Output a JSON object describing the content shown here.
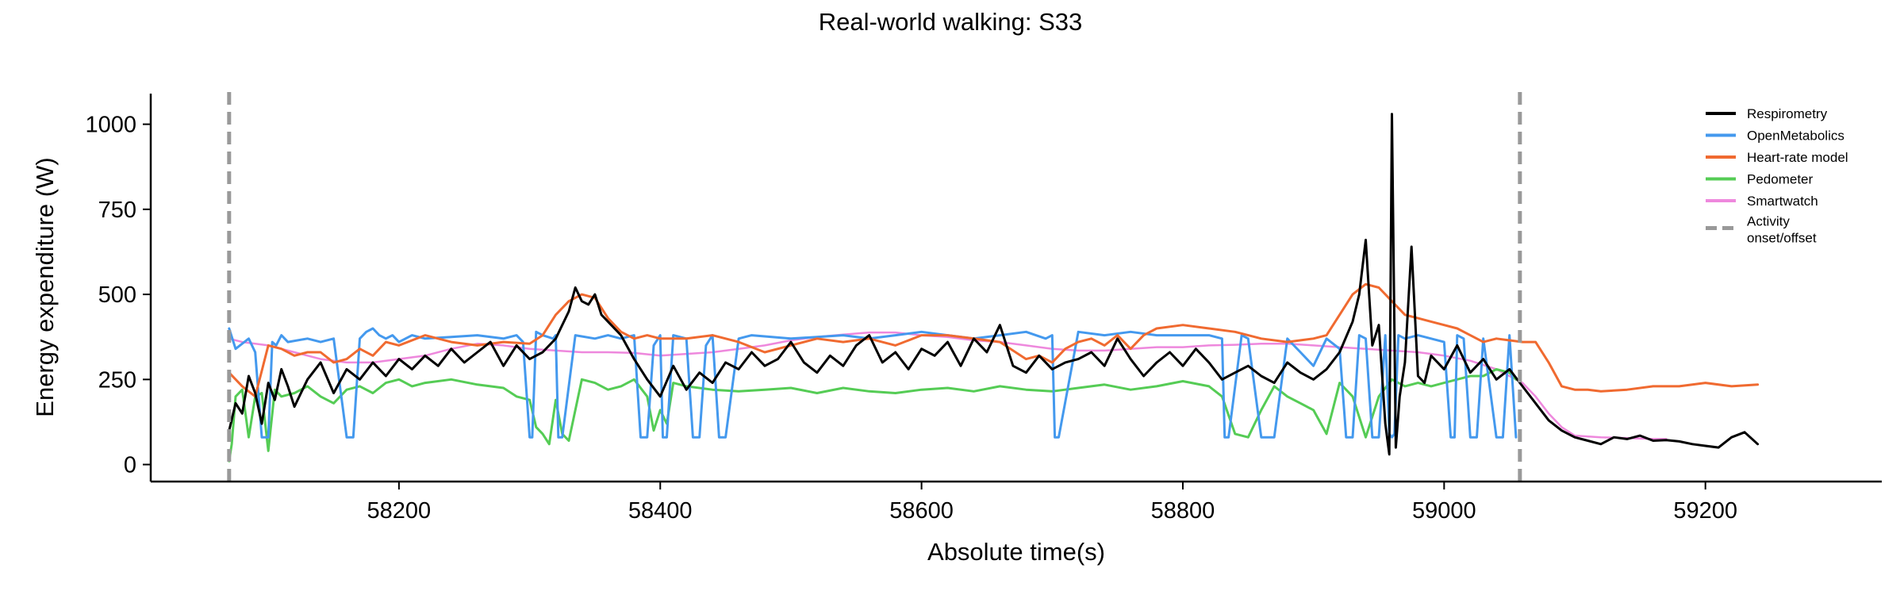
{
  "chart_data": {
    "type": "line",
    "title": "Real-world walking: S33",
    "xlabel": "Absolute time(s)",
    "ylabel": "Energy expenditure (W)",
    "xlim": [
      58010,
      59335
    ],
    "ylim": [
      -50,
      1090
    ],
    "xticks": [
      58200,
      58400,
      58600,
      58800,
      59000,
      59200
    ],
    "yticks": [
      0,
      250,
      500,
      750,
      1000
    ],
    "grid": false,
    "legend_position": "top-right",
    "activity_markers": {
      "name": "Activity onset/offset",
      "color": "#999999",
      "x": [
        58070,
        59058
      ]
    },
    "series": [
      {
        "name": "Respirometry",
        "color": "#000000",
        "x": [
          58070,
          58075,
          58080,
          58085,
          58090,
          58095,
          58100,
          58105,
          58110,
          58115,
          58120,
          58130,
          58140,
          58150,
          58160,
          58170,
          58180,
          58190,
          58200,
          58210,
          58220,
          58230,
          58240,
          58250,
          58260,
          58270,
          58280,
          58290,
          58300,
          58310,
          58320,
          58330,
          58335,
          58340,
          58345,
          58350,
          58355,
          58360,
          58370,
          58380,
          58390,
          58400,
          58410,
          58420,
          58430,
          58440,
          58450,
          58460,
          58470,
          58480,
          58490,
          58500,
          58510,
          58520,
          58530,
          58540,
          58550,
          58560,
          58570,
          58580,
          58590,
          58600,
          58610,
          58620,
          58630,
          58640,
          58650,
          58660,
          58670,
          58680,
          58690,
          58700,
          58710,
          58720,
          58730,
          58740,
          58750,
          58760,
          58770,
          58780,
          58790,
          58800,
          58810,
          58820,
          58830,
          58840,
          58850,
          58860,
          58870,
          58880,
          58890,
          58900,
          58910,
          58920,
          58930,
          58935,
          58940,
          58945,
          58950,
          58955,
          58958,
          58960,
          58963,
          58966,
          58970,
          58975,
          58980,
          58985,
          58990,
          59000,
          59010,
          59020,
          59030,
          59040,
          59050,
          59060,
          59070,
          59080,
          59090,
          59100,
          59110,
          59120,
          59130,
          59140,
          59150,
          59160,
          59170,
          59180,
          59190,
          59200,
          59210,
          59220,
          59230,
          59240
        ],
        "y": [
          100,
          180,
          150,
          260,
          210,
          120,
          240,
          190,
          280,
          230,
          170,
          250,
          300,
          210,
          280,
          250,
          300,
          260,
          310,
          280,
          320,
          290,
          340,
          300,
          330,
          360,
          290,
          350,
          310,
          330,
          370,
          450,
          520,
          480,
          470,
          500,
          440,
          420,
          380,
          310,
          250,
          200,
          290,
          220,
          270,
          240,
          300,
          280,
          330,
          290,
          310,
          360,
          300,
          270,
          320,
          290,
          350,
          380,
          300,
          330,
          280,
          340,
          320,
          360,
          290,
          370,
          330,
          410,
          290,
          270,
          320,
          280,
          300,
          310,
          330,
          290,
          370,
          310,
          260,
          300,
          330,
          290,
          340,
          300,
          250,
          270,
          290,
          260,
          240,
          300,
          270,
          250,
          280,
          330,
          420,
          500,
          660,
          350,
          410,
          120,
          30,
          1030,
          50,
          200,
          300,
          640,
          260,
          240,
          320,
          280,
          350,
          270,
          310,
          250,
          280,
          230,
          180,
          130,
          100,
          80,
          70,
          60,
          80,
          75,
          85,
          70,
          72,
          68,
          60,
          55,
          50,
          80,
          95,
          60
        ],
        "linewidth": 3
      },
      {
        "name": "OpenMetabolics",
        "color": "#4499ee",
        "x": [
          58070,
          58075,
          58085,
          58090,
          58095,
          58100,
          58103,
          58106,
          58110,
          58115,
          58130,
          58140,
          58150,
          58160,
          58165,
          58170,
          58175,
          58180,
          58185,
          58190,
          58195,
          58200,
          58210,
          58220,
          58240,
          58260,
          58280,
          58290,
          58295,
          58300,
          58302,
          58305,
          58310,
          58318,
          58320,
          58322,
          58325,
          58335,
          58350,
          58360,
          58370,
          58380,
          58385,
          58390,
          58395,
          58400,
          58402,
          58405,
          58410,
          58420,
          58425,
          58430,
          58435,
          58440,
          58445,
          58450,
          58460,
          58470,
          58500,
          58520,
          58540,
          58560,
          58580,
          58600,
          58620,
          58640,
          58660,
          58680,
          58695,
          58700,
          58702,
          58705,
          58720,
          58740,
          58760,
          58780,
          58800,
          58820,
          58830,
          58832,
          58835,
          58845,
          58850,
          58860,
          58870,
          58880,
          58890,
          58900,
          58910,
          58920,
          58925,
          58930,
          58935,
          58940,
          58945,
          58950,
          58955,
          58958,
          58960,
          58962,
          58965,
          58970,
          58980,
          58990,
          59000,
          59005,
          59008,
          59010,
          59015,
          59020,
          59025,
          59030,
          59040,
          59045,
          59050,
          59055
        ],
        "y": [
          400,
          340,
          370,
          330,
          80,
          80,
          360,
          350,
          380,
          360,
          370,
          360,
          370,
          80,
          80,
          370,
          390,
          400,
          380,
          370,
          380,
          360,
          380,
          370,
          375,
          380,
          370,
          380,
          360,
          80,
          80,
          390,
          380,
          370,
          380,
          80,
          80,
          380,
          370,
          380,
          370,
          380,
          80,
          80,
          350,
          380,
          80,
          80,
          380,
          370,
          80,
          80,
          350,
          380,
          80,
          80,
          370,
          380,
          370,
          375,
          380,
          370,
          380,
          390,
          380,
          370,
          380,
          390,
          370,
          380,
          80,
          80,
          390,
          380,
          390,
          380,
          380,
          380,
          370,
          80,
          80,
          380,
          370,
          80,
          80,
          370,
          330,
          290,
          370,
          340,
          80,
          80,
          380,
          370,
          80,
          80,
          380,
          90,
          80,
          90,
          380,
          370,
          380,
          370,
          360,
          80,
          80,
          380,
          370,
          80,
          80,
          370,
          80,
          80,
          380,
          80
        ],
        "linewidth": 3
      },
      {
        "name": "Heart-rate model",
        "color": "#f06a30",
        "x": [
          58070,
          58080,
          58090,
          58100,
          58110,
          58120,
          58130,
          58140,
          58150,
          58160,
          58170,
          58180,
          58190,
          58200,
          58220,
          58240,
          58260,
          58280,
          58300,
          58310,
          58320,
          58330,
          58340,
          58350,
          58355,
          58360,
          58370,
          58380,
          58390,
          58400,
          58420,
          58440,
          58460,
          58480,
          58500,
          58520,
          58540,
          58560,
          58580,
          58600,
          58620,
          58640,
          58660,
          58680,
          58690,
          58700,
          58710,
          58720,
          58730,
          58740,
          58750,
          58760,
          58770,
          58780,
          58800,
          58820,
          58840,
          58860,
          58880,
          58900,
          58910,
          58920,
          58930,
          58940,
          58950,
          58960,
          58970,
          58980,
          58990,
          59000,
          59010,
          59020,
          59030,
          59040,
          59050,
          59060,
          59070,
          59080,
          59090,
          59100,
          59110,
          59120,
          59140,
          59160,
          59180,
          59200,
          59220,
          59240
        ],
        "y": [
          270,
          230,
          200,
          350,
          340,
          320,
          330,
          330,
          300,
          310,
          340,
          320,
          360,
          350,
          380,
          360,
          350,
          360,
          355,
          380,
          440,
          480,
          500,
          490,
          460,
          430,
          390,
          370,
          380,
          370,
          370,
          380,
          360,
          330,
          350,
          370,
          360,
          370,
          350,
          380,
          380,
          370,
          360,
          310,
          320,
          300,
          340,
          360,
          370,
          350,
          380,
          340,
          380,
          400,
          410,
          400,
          390,
          370,
          360,
          370,
          380,
          440,
          500,
          530,
          520,
          480,
          440,
          430,
          420,
          410,
          400,
          380,
          360,
          370,
          365,
          360,
          360,
          300,
          230,
          220,
          220,
          215,
          220,
          230,
          230,
          240,
          230,
          235
        ],
        "linewidth": 3
      },
      {
        "name": "Pedometer",
        "color": "#55cc55",
        "x": [
          58070,
          58072,
          58075,
          58080,
          58085,
          58090,
          58095,
          58100,
          58105,
          58110,
          58120,
          58130,
          58140,
          58150,
          58160,
          58170,
          58180,
          58190,
          58200,
          58210,
          58220,
          58240,
          58260,
          58280,
          58290,
          58300,
          58305,
          58310,
          58315,
          58320,
          58325,
          58330,
          58340,
          58350,
          58360,
          58370,
          58380,
          58390,
          58395,
          58400,
          58405,
          58410,
          58420,
          58440,
          58460,
          58480,
          58500,
          58520,
          58540,
          58560,
          58580,
          58600,
          58620,
          58640,
          58660,
          58680,
          58700,
          58720,
          58740,
          58760,
          58780,
          58800,
          58820,
          58830,
          58840,
          58850,
          58860,
          58870,
          58880,
          58890,
          58900,
          58910,
          58920,
          58930,
          58940,
          58950,
          58960,
          58970,
          58980,
          58990,
          59000,
          59010,
          59020,
          59030,
          59040,
          59050,
          59055
        ],
        "y": [
          10,
          60,
          200,
          220,
          80,
          200,
          210,
          40,
          220,
          200,
          210,
          230,
          200,
          180,
          220,
          230,
          210,
          240,
          250,
          230,
          240,
          250,
          235,
          225,
          200,
          190,
          110,
          90,
          60,
          190,
          90,
          70,
          250,
          240,
          220,
          230,
          250,
          200,
          100,
          160,
          120,
          240,
          230,
          220,
          215,
          220,
          225,
          210,
          225,
          215,
          210,
          220,
          225,
          215,
          230,
          220,
          215,
          225,
          235,
          220,
          230,
          245,
          230,
          200,
          90,
          80,
          160,
          230,
          200,
          180,
          160,
          90,
          240,
          200,
          80,
          200,
          250,
          230,
          240,
          230,
          240,
          250,
          260,
          260,
          280,
          270,
          250
        ],
        "linewidth": 3
      },
      {
        "name": "Smartwatch",
        "color": "#ee88dd",
        "x": [
          58070,
          58080,
          58100,
          58120,
          58140,
          58160,
          58180,
          58200,
          58220,
          58240,
          58260,
          58280,
          58300,
          58320,
          58340,
          58360,
          58380,
          58400,
          58420,
          58440,
          58460,
          58480,
          58500,
          58520,
          58540,
          58560,
          58580,
          58600,
          58620,
          58640,
          58660,
          58680,
          58700,
          58720,
          58740,
          58760,
          58780,
          58800,
          58820,
          58840,
          58860,
          58880,
          58900,
          58920,
          58940,
          58960,
          58980,
          59000,
          59020,
          59040,
          59060,
          59070,
          59080,
          59090,
          59100,
          59120,
          59140,
          59160,
          59170
        ],
        "y": [
          370,
          360,
          350,
          330,
          310,
          300,
          300,
          310,
          320,
          340,
          355,
          350,
          340,
          335,
          330,
          330,
          328,
          320,
          325,
          330,
          340,
          350,
          365,
          375,
          382,
          388,
          388,
          380,
          375,
          365,
          360,
          350,
          340,
          335,
          335,
          340,
          345,
          345,
          350,
          352,
          355,
          355,
          350,
          345,
          340,
          335,
          330,
          320,
          305,
          280,
          240,
          200,
          150,
          110,
          85,
          80,
          78,
          75,
          75
        ],
        "linewidth": 2.5
      }
    ]
  }
}
